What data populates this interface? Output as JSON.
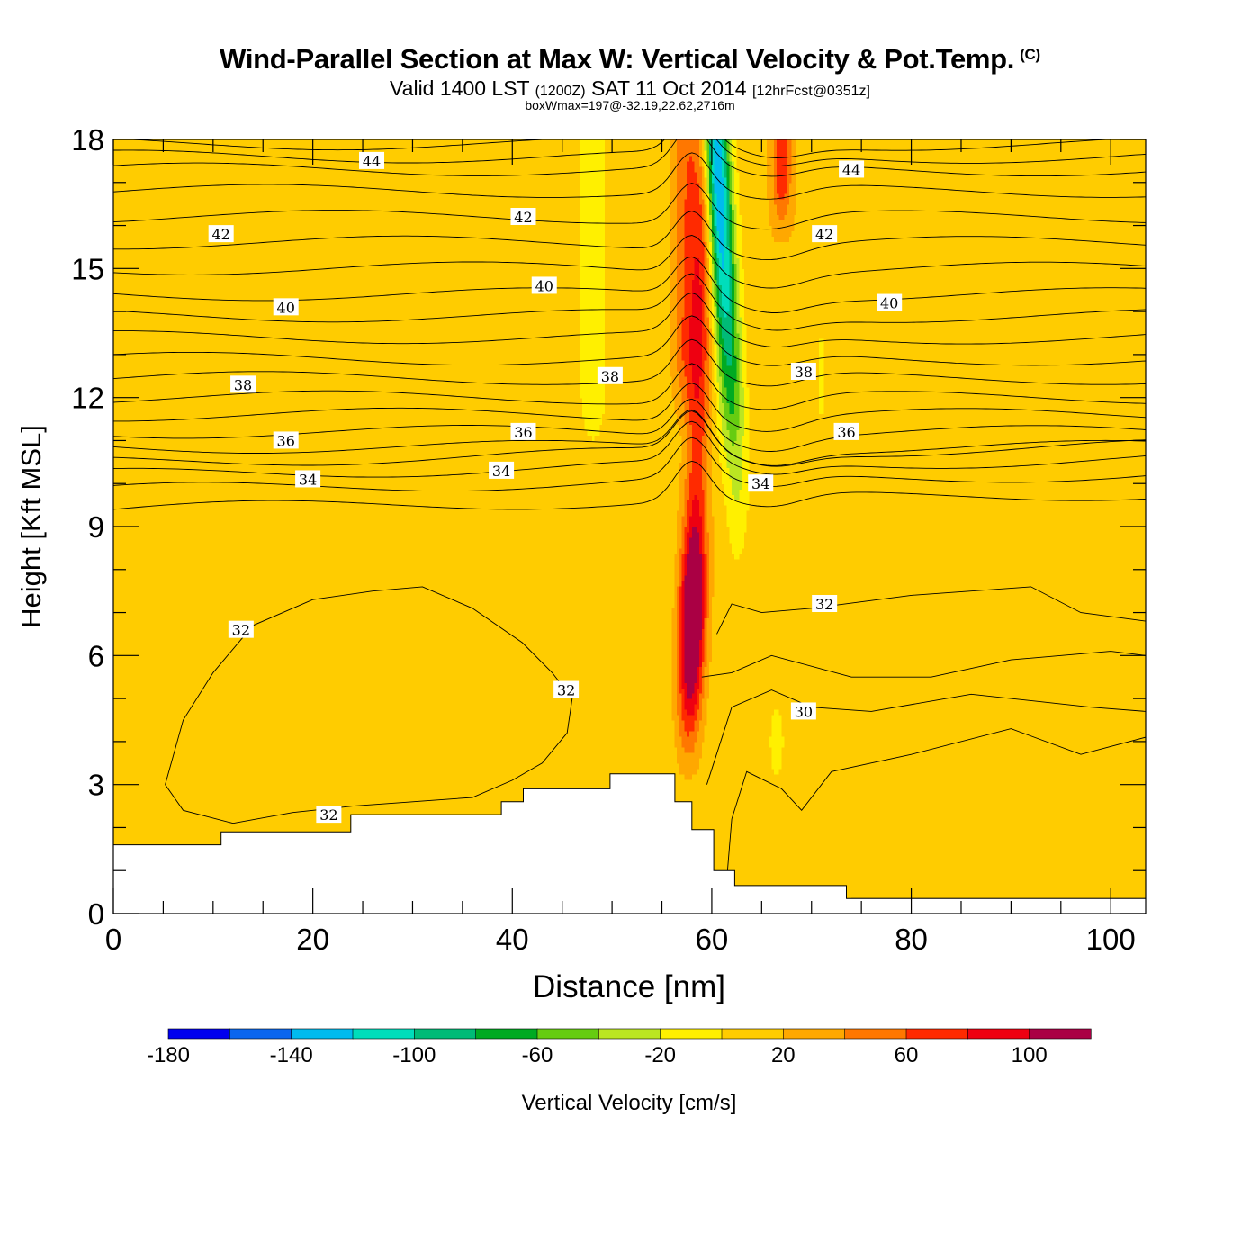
{
  "header": {
    "title": "Wind-Parallel Section at Max W: Vertical Velocity & Pot.Temp.",
    "copyright": "(C)",
    "valid_prefix": "Valid 1400 LST",
    "valid_zulu": "(1200Z)",
    "valid_date": "SAT 11 Oct 2014",
    "forecast": "[12hrFcst@0351z]",
    "box_info": "boxWmax=197@-32.19,22.62,2716m"
  },
  "chart_data": {
    "type": "heatmap",
    "xlabel": "Distance [nm]",
    "ylabel": "Height [Kft MSL]",
    "xlim": [
      0,
      103.5
    ],
    "ylim": [
      0,
      18
    ],
    "x_ticks": [
      0,
      20,
      40,
      60,
      80,
      100
    ],
    "y_ticks": [
      0,
      3,
      6,
      9,
      12,
      15,
      18
    ],
    "colorbar": {
      "label": "Vertical Velocity [cm/s]",
      "bounds": [
        -180,
        -160,
        -140,
        -120,
        -100,
        -80,
        -60,
        -40,
        -20,
        0,
        20,
        40,
        60,
        80,
        100,
        120
      ],
      "tick_labels": [
        "-180",
        "-140",
        "-100",
        "-60",
        "-20",
        "20",
        "60",
        "100"
      ],
      "colors": [
        "#0000ee",
        "#0a66ee",
        "#00bbee",
        "#00ddbb",
        "#00bb77",
        "#00aa22",
        "#66cc11",
        "#bbe622",
        "#fff000",
        "#ffcc00",
        "#ffa800",
        "#ff7700",
        "#ff2a00",
        "#ee0011",
        "#aa0044"
      ]
    },
    "terrain_kft": [
      [
        0,
        1.6
      ],
      [
        10.8,
        1.6
      ],
      [
        10.8,
        1.9
      ],
      [
        23.8,
        1.9
      ],
      [
        23.8,
        2.3
      ],
      [
        38.9,
        2.3
      ],
      [
        38.9,
        2.6
      ],
      [
        41.1,
        2.6
      ],
      [
        41.1,
        2.9
      ],
      [
        49.8,
        2.9
      ],
      [
        49.8,
        3.25
      ],
      [
        56.3,
        3.25
      ],
      [
        56.3,
        2.6
      ],
      [
        58.0,
        2.6
      ],
      [
        58.0,
        1.95
      ],
      [
        60.2,
        1.95
      ],
      [
        60.2,
        1.0
      ],
      [
        62.3,
        1.0
      ],
      [
        62.3,
        0.65
      ],
      [
        73.5,
        0.65
      ],
      [
        73.5,
        0.35
      ],
      [
        103.5,
        0.35
      ]
    ],
    "isentrope_labels": [
      {
        "value": "44",
        "x": 25.9,
        "y": 17.5
      },
      {
        "value": "44",
        "x": 74.0,
        "y": 17.3
      },
      {
        "value": "42",
        "x": 10.8,
        "y": 15.8
      },
      {
        "value": "42",
        "x": 41.1,
        "y": 16.2
      },
      {
        "value": "42",
        "x": 71.3,
        "y": 15.8
      },
      {
        "value": "40",
        "x": 17.3,
        "y": 14.1
      },
      {
        "value": "40",
        "x": 43.2,
        "y": 14.6
      },
      {
        "value": "40",
        "x": 77.8,
        "y": 14.2
      },
      {
        "value": "38",
        "x": 13.0,
        "y": 12.3
      },
      {
        "value": "38",
        "x": 49.8,
        "y": 12.5
      },
      {
        "value": "38",
        "x": 69.2,
        "y": 12.6
      },
      {
        "value": "36",
        "x": 17.3,
        "y": 11.0
      },
      {
        "value": "36",
        "x": 41.1,
        "y": 11.2
      },
      {
        "value": "36",
        "x": 73.5,
        "y": 11.2
      },
      {
        "value": "34",
        "x": 19.5,
        "y": 10.1
      },
      {
        "value": "34",
        "x": 38.9,
        "y": 10.3
      },
      {
        "value": "34",
        "x": 64.9,
        "y": 10.0
      },
      {
        "value": "32",
        "x": 12.8,
        "y": 6.6
      },
      {
        "value": "32",
        "x": 45.4,
        "y": 5.2
      },
      {
        "value": "32",
        "x": 21.6,
        "y": 2.3
      },
      {
        "value": "32",
        "x": 71.3,
        "y": 7.2
      },
      {
        "value": "30",
        "x": 69.2,
        "y": 4.7
      }
    ],
    "isentrope_levels_kft_left": [
      9.4,
      9.85,
      10.2,
      10.5,
      10.85,
      11.2,
      11.6,
      12.0,
      12.45,
      12.9,
      13.4,
      13.9,
      14.4,
      15.0,
      15.6,
      16.2,
      16.8,
      17.3,
      17.6,
      17.9
    ]
  }
}
